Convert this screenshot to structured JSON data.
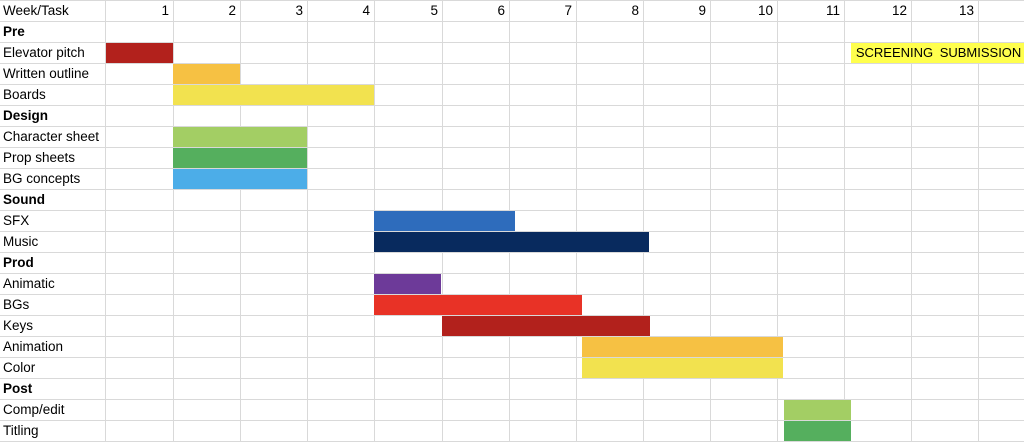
{
  "chart_data": {
    "type": "table",
    "header_label": "Week/Task",
    "weeks": [
      1,
      2,
      3,
      4,
      5,
      6,
      7,
      8,
      9,
      10,
      11,
      12,
      13
    ],
    "rows": [
      {
        "label": "Pre",
        "section": true
      },
      {
        "label": "Elevator pitch",
        "start": 0,
        "end": 1,
        "color": "#b2211c"
      },
      {
        "label": "Written outline",
        "start": 1,
        "end": 2,
        "color": "#f6c143"
      },
      {
        "label": "Boards",
        "start": 1,
        "end": 4,
        "color": "#f2e24f"
      },
      {
        "label": "Design",
        "section": true
      },
      {
        "label": "Character sheet",
        "start": 1,
        "end": 3,
        "color": "#a3ce64"
      },
      {
        "label": "Prop sheets",
        "start": 1,
        "end": 3,
        "color": "#55af5e"
      },
      {
        "label": "BG concepts",
        "start": 1,
        "end": 3,
        "color": "#4cade8"
      },
      {
        "label": "Sound",
        "section": true
      },
      {
        "label": "SFX",
        "start": 4,
        "end": 6.1,
        "color": "#2e6cbc"
      },
      {
        "label": "Music",
        "start": 4,
        "end": 8.1,
        "color": "#082a5e"
      },
      {
        "label": "Prod",
        "section": true
      },
      {
        "label": "Animatic",
        "start": 4,
        "end": 5,
        "color": "#6d3a99"
      },
      {
        "label": "BGs",
        "start": 4,
        "end": 7.1,
        "color": "#e83226"
      },
      {
        "label": "Keys",
        "start": 5,
        "end": 8.1,
        "color": "#b2211c"
      },
      {
        "label": "Animation",
        "start": 7.1,
        "end": 10.1,
        "color": "#f6c143"
      },
      {
        "label": "Color",
        "start": 7.1,
        "end": 10.1,
        "color": "#f2e24f"
      },
      {
        "label": "Post",
        "section": true
      },
      {
        "label": "Comp/edit",
        "start": 10.1,
        "end": 11.1,
        "color": "#a3ce64"
      },
      {
        "label": "Titling",
        "start": 10.1,
        "end": 11.1,
        "color": "#55af5e"
      }
    ],
    "milestone": {
      "row": "Elevator pitch",
      "start": 11.1,
      "end": 13,
      "color": "#ffff4d",
      "labels": [
        "SCREENING",
        "SUBMISSION"
      ]
    }
  }
}
